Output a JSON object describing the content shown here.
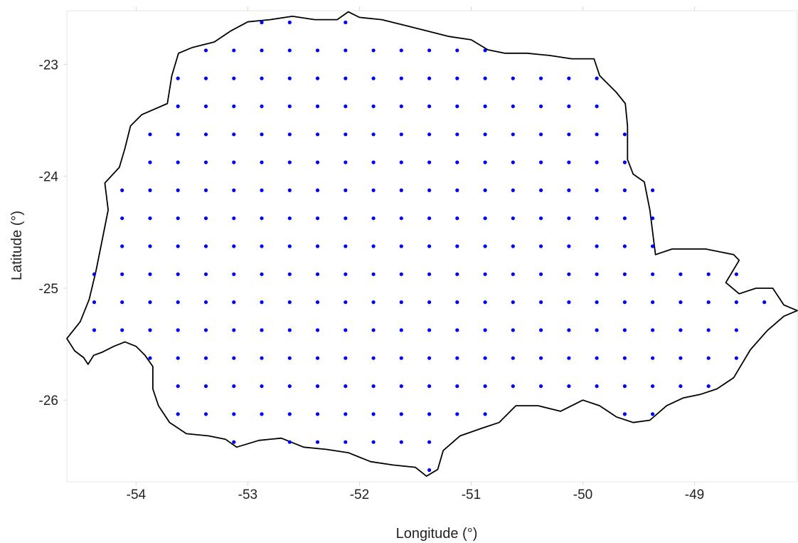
{
  "chart_data": {
    "type": "scatter",
    "xlabel": "Longitude (°)",
    "ylabel": "Latitude (°)",
    "xlim": [
      -54.62,
      -48.08
    ],
    "ylim": [
      -26.73,
      -22.52
    ],
    "x_ticks": [
      "-54",
      "-53",
      "-52",
      "-51",
      "-50",
      "-49"
    ],
    "y_ticks": [
      "-23",
      "-24",
      "-25",
      "-26"
    ],
    "grid": false,
    "point_color": "#0000ff",
    "outline_color": "#000000",
    "grid_points": {
      "lon_start": -54.375,
      "lat_start": -22.625,
      "step": 0.25,
      "rows": [
        {
          "lat": -22.625,
          "lons": [
            -52.875,
            -52.625,
            -52.125
          ]
        },
        {
          "lat": -22.875,
          "lons": [
            -53.375,
            -53.125,
            -52.875,
            -52.625,
            -52.375,
            -52.125,
            -51.875,
            -51.625,
            -51.375,
            -51.125,
            -50.875
          ]
        },
        {
          "lat": -23.125,
          "lons": [
            -53.625,
            -53.375,
            -53.125,
            -52.875,
            -52.625,
            -52.375,
            -52.125,
            -51.875,
            -51.625,
            -51.375,
            -51.125,
            -50.875,
            -50.625,
            -50.375,
            -50.125,
            -49.875
          ]
        },
        {
          "lat": -23.375,
          "lons": [
            -53.625,
            -53.375,
            -53.125,
            -52.875,
            -52.625,
            -52.375,
            -52.125,
            -51.875,
            -51.625,
            -51.375,
            -51.125,
            -50.875,
            -50.625,
            -50.375,
            -50.125,
            -49.875
          ]
        },
        {
          "lat": -23.625,
          "lons": [
            -53.875,
            -53.625,
            -53.375,
            -53.125,
            -52.875,
            -52.625,
            -52.375,
            -52.125,
            -51.875,
            -51.625,
            -51.375,
            -51.125,
            -50.875,
            -50.625,
            -50.375,
            -50.125,
            -49.875,
            -49.625
          ]
        },
        {
          "lat": -23.875,
          "lons": [
            -53.875,
            -53.625,
            -53.375,
            -53.125,
            -52.875,
            -52.625,
            -52.375,
            -52.125,
            -51.875,
            -51.625,
            -51.375,
            -51.125,
            -50.875,
            -50.625,
            -50.375,
            -50.125,
            -49.875,
            -49.625
          ]
        },
        {
          "lat": -24.125,
          "lons": [
            -54.125,
            -53.875,
            -53.625,
            -53.375,
            -53.125,
            -52.875,
            -52.625,
            -52.375,
            -52.125,
            -51.875,
            -51.625,
            -51.375,
            -51.125,
            -50.875,
            -50.625,
            -50.375,
            -50.125,
            -49.875,
            -49.625,
            -49.375
          ]
        },
        {
          "lat": -24.375,
          "lons": [
            -54.125,
            -53.875,
            -53.625,
            -53.375,
            -53.125,
            -52.875,
            -52.625,
            -52.375,
            -52.125,
            -51.875,
            -51.625,
            -51.375,
            -51.125,
            -50.875,
            -50.625,
            -50.375,
            -50.125,
            -49.875,
            -49.625,
            -49.375
          ]
        },
        {
          "lat": -24.625,
          "lons": [
            -54.125,
            -53.875,
            -53.625,
            -53.375,
            -53.125,
            -52.875,
            -52.625,
            -52.375,
            -52.125,
            -51.875,
            -51.625,
            -51.375,
            -51.125,
            -50.875,
            -50.625,
            -50.375,
            -50.125,
            -49.875,
            -49.625,
            -49.375
          ]
        },
        {
          "lat": -24.875,
          "lons": [
            -54.375,
            -54.125,
            -53.875,
            -53.625,
            -53.375,
            -53.125,
            -52.875,
            -52.625,
            -52.375,
            -52.125,
            -51.875,
            -51.625,
            -51.375,
            -51.125,
            -50.875,
            -50.625,
            -50.375,
            -50.125,
            -49.875,
            -49.625,
            -49.375,
            -49.125,
            -48.875,
            -48.625
          ]
        },
        {
          "lat": -25.125,
          "lons": [
            -54.375,
            -54.125,
            -53.875,
            -53.625,
            -53.375,
            -53.125,
            -52.875,
            -52.625,
            -52.375,
            -52.125,
            -51.875,
            -51.625,
            -51.375,
            -51.125,
            -50.875,
            -50.625,
            -50.375,
            -50.125,
            -49.875,
            -49.625,
            -49.375,
            -49.125,
            -48.875,
            -48.625,
            -48.375
          ]
        },
        {
          "lat": -25.375,
          "lons": [
            -54.375,
            -54.125,
            -53.875,
            -53.625,
            -53.375,
            -53.125,
            -52.875,
            -52.625,
            -52.375,
            -52.125,
            -51.875,
            -51.625,
            -51.375,
            -51.125,
            -50.875,
            -50.625,
            -50.375,
            -50.125,
            -49.875,
            -49.625,
            -49.375,
            -49.125,
            -48.875,
            -48.625
          ]
        },
        {
          "lat": -25.625,
          "lons": [
            -53.875,
            -53.625,
            -53.375,
            -53.125,
            -52.875,
            -52.625,
            -52.375,
            -52.125,
            -51.875,
            -51.625,
            -51.375,
            -51.125,
            -50.875,
            -50.625,
            -50.375,
            -50.125,
            -49.875,
            -49.625,
            -49.375,
            -49.125,
            -48.875,
            -48.625
          ]
        },
        {
          "lat": -25.875,
          "lons": [
            -53.625,
            -53.375,
            -53.125,
            -52.875,
            -52.625,
            -52.375,
            -52.125,
            -51.875,
            -51.625,
            -51.375,
            -51.125,
            -50.875,
            -50.625,
            -50.375,
            -50.125,
            -49.875,
            -49.625,
            -49.375,
            -49.125,
            -48.875
          ]
        },
        {
          "lat": -26.125,
          "lons": [
            -53.625,
            -53.375,
            -53.125,
            -52.875,
            -52.625,
            -52.375,
            -52.125,
            -51.875,
            -51.625,
            -51.375,
            -51.125,
            -50.875,
            -49.625,
            -49.375
          ]
        },
        {
          "lat": -26.375,
          "lons": [
            -53.125,
            -52.625,
            -52.375,
            -52.125,
            -51.875,
            -51.625,
            -51.375
          ]
        },
        {
          "lat": -26.625,
          "lons": [
            -51.375
          ]
        }
      ]
    },
    "outline": [
      [
        -54.62,
        -25.45
      ],
      [
        -54.55,
        -25.56
      ],
      [
        -54.47,
        -25.62
      ],
      [
        -54.43,
        -25.68
      ],
      [
        -54.38,
        -25.6
      ],
      [
        -54.3,
        -25.57
      ],
      [
        -54.2,
        -25.52
      ],
      [
        -54.1,
        -25.48
      ],
      [
        -54.0,
        -25.52
      ],
      [
        -53.92,
        -25.6
      ],
      [
        -53.85,
        -25.7
      ],
      [
        -53.85,
        -25.9
      ],
      [
        -53.8,
        -26.05
      ],
      [
        -53.7,
        -26.2
      ],
      [
        -53.55,
        -26.3
      ],
      [
        -53.35,
        -26.32
      ],
      [
        -53.2,
        -26.35
      ],
      [
        -53.1,
        -26.42
      ],
      [
        -52.9,
        -26.36
      ],
      [
        -52.7,
        -26.34
      ],
      [
        -52.5,
        -26.42
      ],
      [
        -52.3,
        -26.44
      ],
      [
        -52.1,
        -26.47
      ],
      [
        -51.9,
        -26.55
      ],
      [
        -51.7,
        -26.58
      ],
      [
        -51.5,
        -26.6
      ],
      [
        -51.4,
        -26.68
      ],
      [
        -51.3,
        -26.62
      ],
      [
        -51.25,
        -26.45
      ],
      [
        -51.1,
        -26.32
      ],
      [
        -50.9,
        -26.25
      ],
      [
        -50.75,
        -26.2
      ],
      [
        -50.6,
        -26.05
      ],
      [
        -50.4,
        -26.05
      ],
      [
        -50.2,
        -26.1
      ],
      [
        -50.0,
        -26.0
      ],
      [
        -49.85,
        -26.05
      ],
      [
        -49.7,
        -26.15
      ],
      [
        -49.55,
        -26.2
      ],
      [
        -49.4,
        -26.18
      ],
      [
        -49.25,
        -26.05
      ],
      [
        -49.1,
        -25.98
      ],
      [
        -48.95,
        -25.95
      ],
      [
        -48.8,
        -25.9
      ],
      [
        -48.65,
        -25.8
      ],
      [
        -48.5,
        -25.55
      ],
      [
        -48.35,
        -25.38
      ],
      [
        -48.2,
        -25.25
      ],
      [
        -48.08,
        -25.2
      ],
      [
        -48.2,
        -25.15
      ],
      [
        -48.3,
        -25.0
      ],
      [
        -48.45,
        -25.0
      ],
      [
        -48.6,
        -25.05
      ],
      [
        -48.72,
        -24.95
      ],
      [
        -48.6,
        -24.75
      ],
      [
        -48.65,
        -24.7
      ],
      [
        -48.9,
        -24.65
      ],
      [
        -49.2,
        -24.65
      ],
      [
        -49.35,
        -24.7
      ],
      [
        -49.4,
        -24.3
      ],
      [
        -49.45,
        -24.05
      ],
      [
        -49.55,
        -23.98
      ],
      [
        -49.6,
        -23.85
      ],
      [
        -49.6,
        -23.55
      ],
      [
        -49.62,
        -23.35
      ],
      [
        -49.7,
        -23.25
      ],
      [
        -49.85,
        -23.1
      ],
      [
        -49.9,
        -22.95
      ],
      [
        -50.1,
        -22.95
      ],
      [
        -50.3,
        -22.92
      ],
      [
        -50.5,
        -22.9
      ],
      [
        -50.7,
        -22.9
      ],
      [
        -50.85,
        -22.87
      ],
      [
        -51.0,
        -22.78
      ],
      [
        -51.2,
        -22.75
      ],
      [
        -51.4,
        -22.7
      ],
      [
        -51.6,
        -22.65
      ],
      [
        -51.8,
        -22.6
      ],
      [
        -52.0,
        -22.58
      ],
      [
        -52.1,
        -22.53
      ],
      [
        -52.2,
        -22.6
      ],
      [
        -52.4,
        -22.6
      ],
      [
        -52.6,
        -22.57
      ],
      [
        -52.8,
        -22.6
      ],
      [
        -53.0,
        -22.62
      ],
      [
        -53.15,
        -22.7
      ],
      [
        -53.3,
        -22.8
      ],
      [
        -53.5,
        -22.85
      ],
      [
        -53.62,
        -22.9
      ],
      [
        -53.68,
        -23.1
      ],
      [
        -53.72,
        -23.35
      ],
      [
        -53.95,
        -23.45
      ],
      [
        -54.05,
        -23.55
      ],
      [
        -54.1,
        -23.75
      ],
      [
        -54.15,
        -23.92
      ],
      [
        -54.28,
        -24.06
      ],
      [
        -54.25,
        -24.3
      ],
      [
        -54.3,
        -24.55
      ],
      [
        -54.36,
        -24.85
      ],
      [
        -54.42,
        -25.1
      ],
      [
        -54.5,
        -25.3
      ],
      [
        -54.62,
        -25.45
      ]
    ]
  }
}
